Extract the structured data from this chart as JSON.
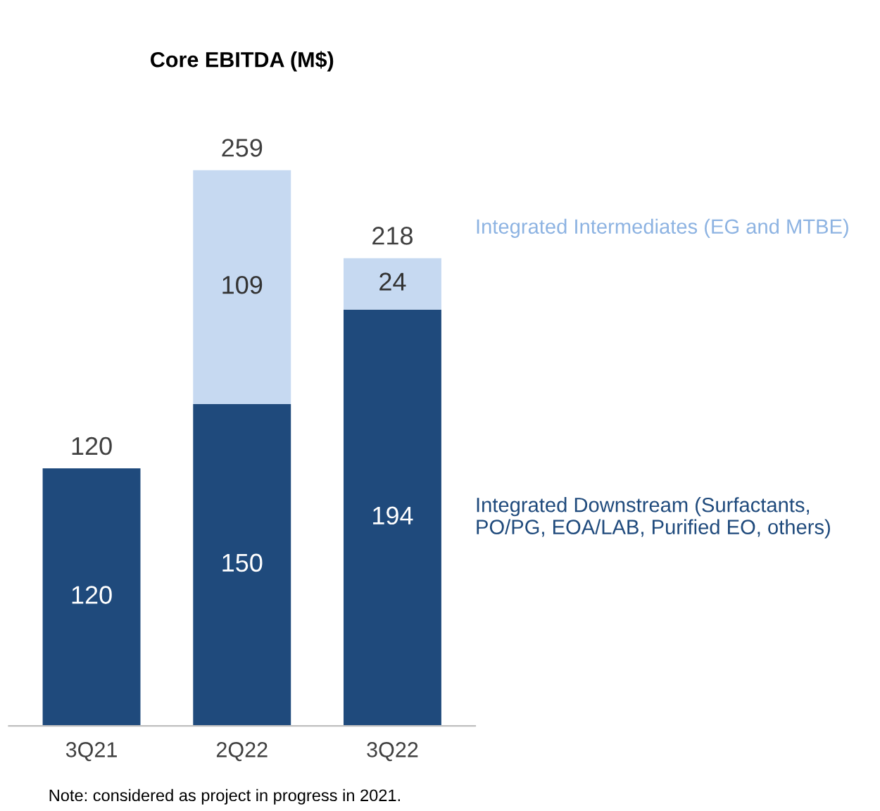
{
  "chart_data": {
    "type": "bar",
    "title": "Core EBITDA (M$)",
    "categories": [
      "3Q21",
      "2Q22",
      "3Q22"
    ],
    "stacked": true,
    "series": [
      {
        "name": "Integrated Downstream (Surfactants, PO/PG, EOA/LAB, Purified EO, others)",
        "color": "#1f4a7c",
        "values": [
          120,
          150,
          194
        ]
      },
      {
        "name": "Integrated Intermediates (EG and MTBE)",
        "color": "#c6d9f1",
        "values": [
          null,
          109,
          24
        ]
      }
    ],
    "data_labels": true,
    "totals": [
      "120",
      "259",
      "218"
    ],
    "legend": "right",
    "grid": false,
    "annotations": [
      "Note: considered as project in progress in 2021."
    ]
  }
}
